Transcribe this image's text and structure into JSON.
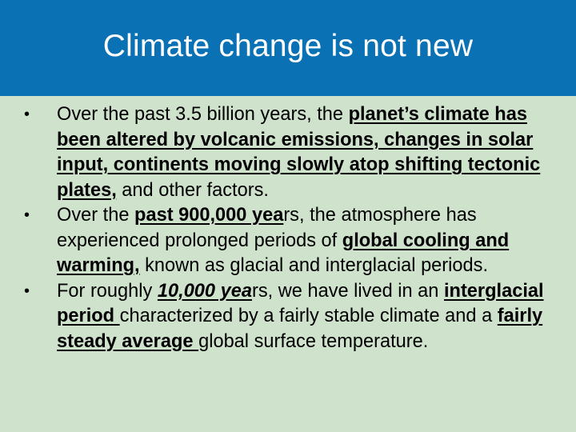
{
  "title": "Climate change is not new",
  "bullet_glyph": "•",
  "bullets": [
    {
      "runs": [
        {
          "text": "Over the past 3.5 billion years, the ",
          "style": "plain"
        },
        {
          "text": "planet’s climate has been altered by volcanic emissions, changes in solar input, continents moving slowly atop shifting tectonic plates,",
          "style": "bold-underline"
        },
        {
          "text": " and other factors.",
          "style": "plain"
        }
      ]
    },
    {
      "runs": [
        {
          "text": "Over the ",
          "style": "plain"
        },
        {
          "text": "past 900,000 yea",
          "style": "bold-underline"
        },
        {
          "text": "rs, the atmosphere has experienced prolonged periods of ",
          "style": "plain"
        },
        {
          "text": "global cooling and warming,",
          "style": "bold-underline"
        },
        {
          "text": " known as glacial and interglacial periods.",
          "style": "plain"
        }
      ]
    },
    {
      "runs": [
        {
          "text": "For roughly ",
          "style": "plain"
        },
        {
          "text": "10,000 yea",
          "style": "bold-italic-underline"
        },
        {
          "text": "rs, we have lived in an ",
          "style": "plain"
        },
        {
          "text": "interglacial period ",
          "style": "bold-underline"
        },
        {
          "text": "characterized by a fairly stable climate and a ",
          "style": "plain"
        },
        {
          "text": "fairly steady average ",
          "style": "bold-underline"
        },
        {
          "text": "global surface temperature.",
          "style": "plain"
        }
      ]
    }
  ],
  "colors": {
    "title_bar": "#0a71b5",
    "background": "#cfe3cc",
    "title_text": "#ffffff",
    "body_text": "#000000"
  }
}
